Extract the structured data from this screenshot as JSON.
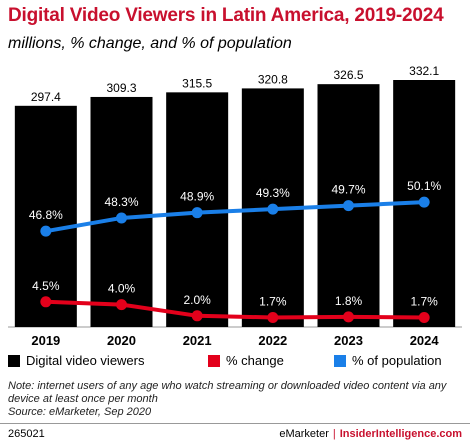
{
  "title": "Digital Video Viewers in Latin America, 2019-2024",
  "subtitle": "millions, % change, and % of population",
  "chart_data": {
    "type": "bar",
    "categories": [
      "2019",
      "2020",
      "2021",
      "2022",
      "2023",
      "2024"
    ],
    "bar_series": {
      "name": "Digital video viewers",
      "values": [
        297.4,
        309.3,
        315.5,
        320.8,
        326.5,
        332.1
      ],
      "labels": [
        "297.4",
        "309.3",
        "315.5",
        "320.8",
        "326.5",
        "332.1"
      ],
      "color": "#000000"
    },
    "line_series": [
      {
        "name": "% change",
        "values": [
          4.5,
          4.0,
          2.0,
          1.7,
          1.8,
          1.7
        ],
        "labels": [
          "4.5%",
          "4.0%",
          "2.0%",
          "1.7%",
          "1.8%",
          "1.7%"
        ],
        "color": "#e3001b"
      },
      {
        "name": "% of population",
        "values": [
          46.8,
          48.3,
          48.9,
          49.3,
          49.7,
          50.1
        ],
        "labels": [
          "46.8%",
          "48.3%",
          "48.9%",
          "49.3%",
          "49.7%",
          "50.1%"
        ],
        "color": "#1a7fe8"
      }
    ],
    "grid": false,
    "legend_position": "bottom"
  },
  "note": "Note: internet users of any age who watch streaming or downloaded video content via any device at least once per month",
  "source": "Source: eMarketer, Sep 2020",
  "footer": {
    "id": "265021",
    "brand": "eMarketer",
    "separator": "|",
    "site": "InsiderIntelligence.com"
  }
}
